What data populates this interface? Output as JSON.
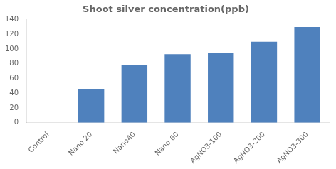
{
  "chart_data": {
    "type": "bar",
    "title": "Shoot silver concentration(ppb)",
    "categories": [
      "Control",
      "Nano 20",
      "Nano40",
      "Nano 60",
      "AgNO3-100",
      "AgNO3-200",
      "AgNO3-300"
    ],
    "values": [
      0,
      45,
      78,
      93,
      95,
      110,
      130
    ],
    "color": "#4f81bd",
    "ylim": [
      0,
      140
    ],
    "yticks": [
      0,
      20,
      40,
      60,
      80,
      100,
      120,
      140
    ],
    "grid": false
  }
}
